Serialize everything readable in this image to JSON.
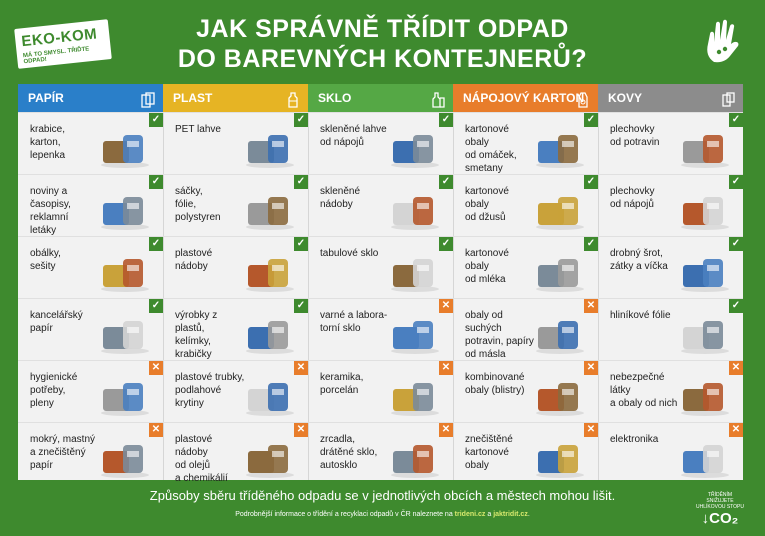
{
  "logo": {
    "brand": "EKO-KOM",
    "tagline": "MÁ TO SMYSL. TŘIĎTE ODPAD!"
  },
  "title": {
    "line1": "JAK SPRÁVNĚ TŘÍDIT ODPAD",
    "line2": "DO BAREVNÝCH KONTEJNERŮ?"
  },
  "colors": {
    "green": "#3e8a2e",
    "orange": "#e87d2b"
  },
  "columns": [
    {
      "label": "PAPÍR",
      "color": "#2a7fc9",
      "icon": "paper-icon",
      "items": [
        {
          "text": "krabice,\nkarton,\nlepenka",
          "ok": true,
          "img": "cardboard-box"
        },
        {
          "text": "noviny a časopisy,\nreklamní\nletáky",
          "ok": true,
          "img": "newspapers"
        },
        {
          "text": "obálky,\nsešity",
          "ok": true,
          "img": "envelopes"
        },
        {
          "text": "kancelářský\npapír",
          "ok": true,
          "img": "office-paper"
        },
        {
          "text": "hygienické potřeby,\npleny",
          "ok": false,
          "img": "diapers"
        },
        {
          "text": "mokrý, mastný\na znečištěný\npapír",
          "ok": false,
          "img": "dirty-paper"
        }
      ]
    },
    {
      "label": "PLAST",
      "color": "#e6b424",
      "icon": "bottle-icon",
      "items": [
        {
          "text": "PET lahve",
          "ok": true,
          "img": "pet-bottles"
        },
        {
          "text": "sáčky,\nfólie,\npolystyren",
          "ok": true,
          "img": "bags"
        },
        {
          "text": "plastové nádoby",
          "ok": true,
          "img": "plastic-containers"
        },
        {
          "text": "výrobky z plastů,\nkelímky,\nkrabičky",
          "ok": true,
          "img": "cups"
        },
        {
          "text": "plastové trubky,\npodlahové\nkrytiny",
          "ok": false,
          "img": "pipes"
        },
        {
          "text": "plastové nádoby\nod olejů\na chemikálií",
          "ok": false,
          "img": "oil-canisters"
        }
      ]
    },
    {
      "label": "SKLO",
      "color": "#55a845",
      "icon": "glass-icon",
      "items": [
        {
          "text": "skleněné lahve\nod nápojů",
          "ok": true,
          "img": "glass-bottles"
        },
        {
          "text": "skleněné nádoby",
          "ok": true,
          "img": "jars"
        },
        {
          "text": "tabulové sklo",
          "ok": true,
          "img": "glass-sheet"
        },
        {
          "text": "varné a labora-\ntorní sklo",
          "ok": false,
          "img": "lab-glass"
        },
        {
          "text": "keramika,\nporcelán",
          "ok": false,
          "img": "porcelain"
        },
        {
          "text": "zrcadla,\ndrátěné sklo,\nautosklo",
          "ok": false,
          "img": "mirror"
        }
      ]
    },
    {
      "label": "NÁPOJOVÝ KARTON",
      "color": "#e87d2b",
      "icon": "carton-icon",
      "items": [
        {
          "text": "kartonové obaly\nod omáček,\nsmetany",
          "ok": true,
          "img": "sauce-cartons"
        },
        {
          "text": "kartonové obaly\nod džusů",
          "ok": true,
          "img": "juice-cartons"
        },
        {
          "text": "kartonové obaly\nod mléka",
          "ok": true,
          "img": "milk-cartons"
        },
        {
          "text": "obaly od suchých\npotravin, papíry\nod másla",
          "ok": false,
          "img": "dry-food"
        },
        {
          "text": "kombinované\nobaly (blistry)",
          "ok": false,
          "img": "blisters"
        },
        {
          "text": "znečištěné\nkartonové\nobaly",
          "ok": false,
          "img": "dirty-cartons"
        }
      ]
    },
    {
      "label": "KOVY",
      "color": "#8c8c8c",
      "icon": "can-icon",
      "items": [
        {
          "text": "plechovky\nod potravin",
          "ok": true,
          "img": "food-cans"
        },
        {
          "text": "plechovky\nod nápojů",
          "ok": true,
          "img": "drink-cans"
        },
        {
          "text": "drobný šrot,\nzátky a víčka",
          "ok": true,
          "img": "pot-scrap"
        },
        {
          "text": "hliníkové fólie",
          "ok": true,
          "img": "foil"
        },
        {
          "text": "nebezpečné látky\na obaly od nich",
          "ok": false,
          "img": "hazard-cans"
        },
        {
          "text": "elektronika",
          "ok": false,
          "img": "kettle"
        }
      ]
    }
  ],
  "footer": {
    "main": "Způsoby sběru tříděného odpadu se v jednotlivých obcích a městech mohou lišit.",
    "info_prefix": "Podrobnější informace o třídění a recyklaci odpadů v ČR naleznete na ",
    "link1": "trideni.cz",
    "and": " a ",
    "link2": "jaktridit.cz",
    "dot": "."
  },
  "co2": {
    "small": "TŘÍDĚNÍM SNIŽUJETE UHLÍKOVOU STOPU",
    "big": "↓CO₂"
  }
}
